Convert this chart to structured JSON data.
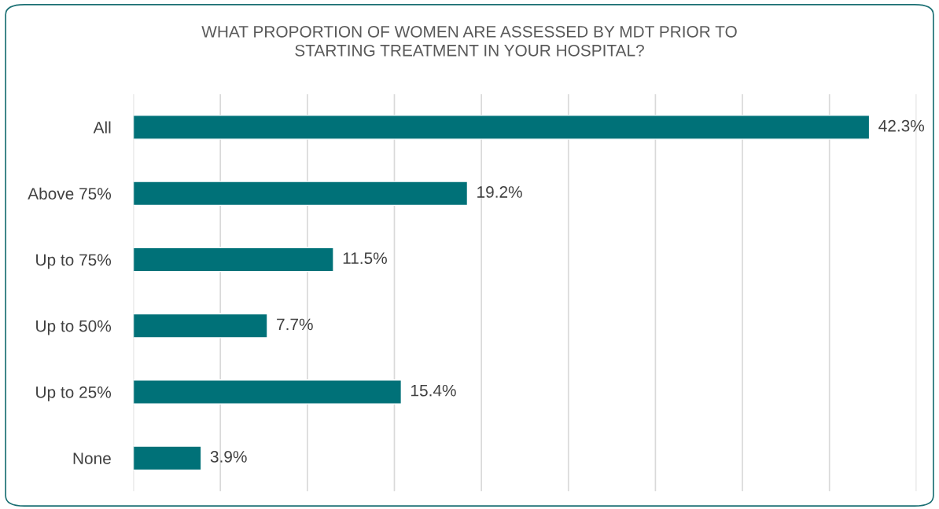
{
  "chart_data": {
    "type": "bar",
    "orientation": "horizontal",
    "title": "WHAT PROPORTION OF WOMEN ARE ASSESSED BY MDT PRIOR TO\nSTARTING TREATMENT IN YOUR HOSPITAL?",
    "categories": [
      "All",
      "Above 75%",
      "Up to 75%",
      "Up to 50%",
      "Up to 25%",
      "None"
    ],
    "values": [
      42.3,
      19.2,
      11.5,
      7.7,
      15.4,
      3.9
    ],
    "value_labels": [
      "42.3%",
      "19.2%",
      "11.5%",
      "7.7%",
      "15.4%",
      "3.9%"
    ],
    "color": "#007178",
    "xlim": [
      0,
      45
    ],
    "xticks": [
      {
        "value": 0,
        "label": null
      },
      {
        "value": 5,
        "label": null
      },
      {
        "value": 10,
        "label": null
      },
      {
        "value": 15,
        "label": null
      },
      {
        "value": 20,
        "label": null
      },
      {
        "value": 25,
        "label": null
      },
      {
        "value": 30,
        "label": null
      },
      {
        "value": 35,
        "label": null
      },
      {
        "value": 40,
        "label": null
      },
      {
        "value": 45,
        "label": null
      }
    ],
    "grid": "x",
    "tick_labels": "y",
    "legend": false
  }
}
